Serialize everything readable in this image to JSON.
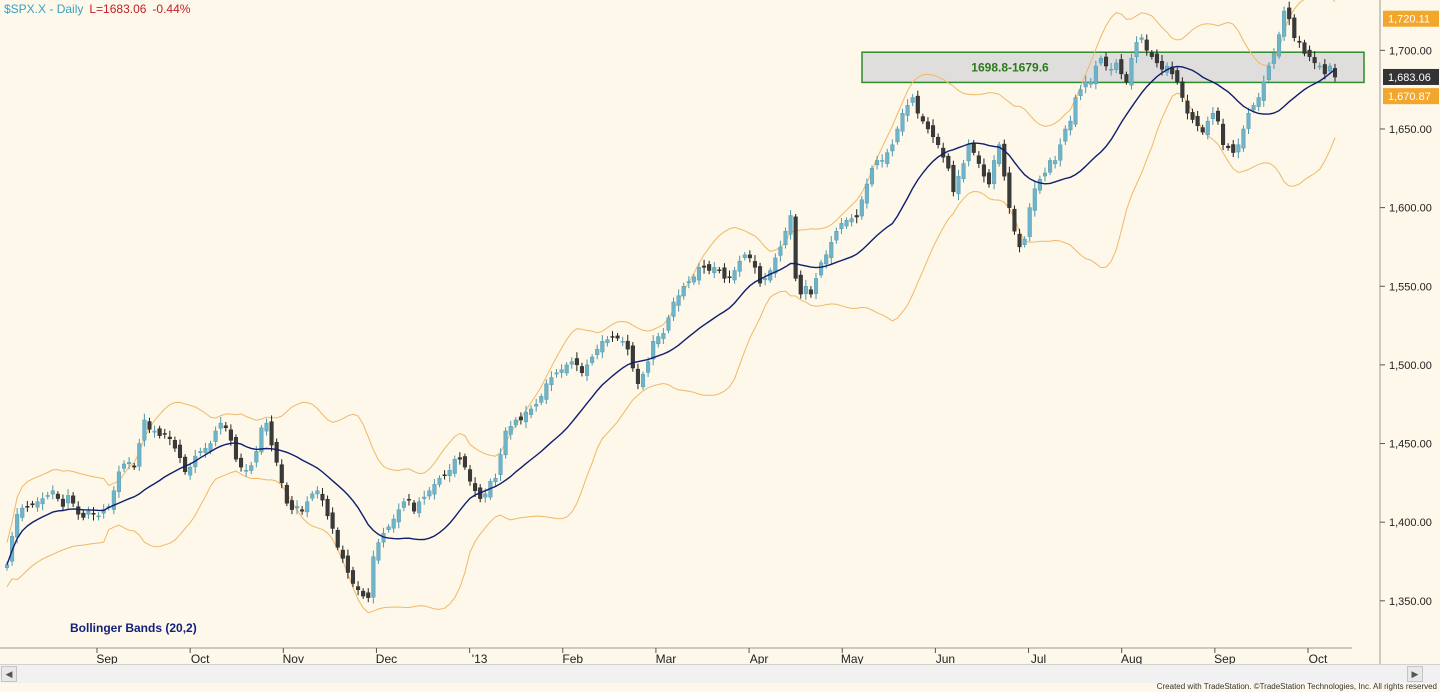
{
  "header": {
    "symbol": "$SPX.X - Daily",
    "last": "L=1683.06",
    "change": "-0.44%"
  },
  "indicator_label": "Bollinger Bands (20,2)",
  "footer": "Created with TradeStation. ©TradeStation Technologies, Inc. All rights reserved",
  "colors": {
    "background": "#fdf8e9",
    "up": "#6fb3c8",
    "down": "#3a3a3a",
    "ma": "#0f1e6e",
    "band": "#f0b868",
    "zone_border": "#2e8b2e",
    "zone_fill": "#d9d9d9",
    "zone_text": "#2a7a1a",
    "price_tag": "#f2a62b",
    "last_tag": "#333333"
  },
  "chart_data": {
    "type": "candlestick",
    "title": "$SPX.X - Daily",
    "y_ticks": [
      1350,
      1400,
      1450,
      1500,
      1550,
      1600,
      1650,
      1700
    ],
    "y_tick_labels": [
      "1,350.00",
      "1,400.00",
      "1,450.00",
      "1,500.00",
      "1,550.00",
      "1,600.00",
      "1,650.00",
      "1,700.00"
    ],
    "ylim": [
      1320,
      1732
    ],
    "x_labels": [
      "Sep",
      "Oct",
      "Nov",
      "Dec",
      "'13",
      "Feb",
      "Mar",
      "Apr",
      "May",
      "Jun",
      "Jul",
      "Aug",
      "Sep",
      "Oct"
    ],
    "zone": {
      "label": "1698.8-1679.6",
      "high": 1698.8,
      "low": 1679.6
    },
    "price_tags": [
      {
        "label": "1,720.11",
        "value": 1720.11,
        "kind": "band"
      },
      {
        "label": "1,683.06",
        "value": 1683.06,
        "kind": "last"
      },
      {
        "label": "1,670.87",
        "value": 1670.87,
        "kind": "band"
      }
    ],
    "indicator": "Bollinger Bands (20,2)",
    "price_path": [
      1373,
      1391,
      1405,
      1409,
      1410,
      1411,
      1413,
      1415,
      1417,
      1420,
      1415,
      1410,
      1417,
      1412,
      1405,
      1403,
      1407,
      1405,
      1404,
      1408,
      1410,
      1420,
      1432,
      1437,
      1438,
      1435,
      1450,
      1465,
      1459,
      1458,
      1455,
      1456,
      1453,
      1447,
      1441,
      1432,
      1435,
      1442,
      1445,
      1447,
      1450,
      1458,
      1463,
      1460,
      1452,
      1440,
      1435,
      1433,
      1436,
      1445,
      1460,
      1463,
      1449,
      1438,
      1425,
      1412,
      1408,
      1410,
      1407,
      1413,
      1418,
      1420,
      1414,
      1404,
      1396,
      1384,
      1377,
      1368,
      1361,
      1357,
      1353,
      1352,
      1378,
      1387,
      1393,
      1397,
      1402,
      1408,
      1413,
      1414,
      1407,
      1413,
      1416,
      1420,
      1424,
      1428,
      1430,
      1433,
      1440,
      1440,
      1435,
      1426,
      1420,
      1415,
      1418,
      1426,
      1428,
      1443,
      1458,
      1461,
      1465,
      1465,
      1470,
      1472,
      1475,
      1480,
      1488,
      1492,
      1495,
      1497,
      1500,
      1502,
      1500,
      1495,
      1500,
      1505,
      1510,
      1515,
      1516,
      1518,
      1517,
      1515,
      1510,
      1498,
      1488,
      1494,
      1502,
      1515,
      1518,
      1520,
      1530,
      1540,
      1544,
      1550,
      1553,
      1556,
      1562,
      1562,
      1560,
      1562,
      1560,
      1555,
      1556,
      1560,
      1566,
      1570,
      1568,
      1562,
      1552,
      1555,
      1560,
      1568,
      1575,
      1585,
      1595,
      1555,
      1545,
      1550,
      1545,
      1555,
      1565,
      1570,
      1578,
      1585,
      1590,
      1592,
      1593,
      1594,
      1605,
      1615,
      1625,
      1630,
      1630,
      1635,
      1640,
      1650,
      1660,
      1665,
      1670,
      1660,
      1655,
      1650,
      1645,
      1640,
      1632,
      1625,
      1610,
      1620,
      1628,
      1640,
      1635,
      1628,
      1620,
      1615,
      1630,
      1640,
      1620,
      1600,
      1585,
      1575,
      1580,
      1600,
      1612,
      1618,
      1622,
      1630,
      1630,
      1640,
      1650,
      1655,
      1670,
      1675,
      1680,
      1680,
      1690,
      1695,
      1690,
      1688,
      1692,
      1685,
      1680,
      1695,
      1705,
      1708,
      1700,
      1696,
      1692,
      1688,
      1690,
      1685,
      1680,
      1670,
      1660,
      1656,
      1652,
      1648,
      1655,
      1660,
      1655,
      1640,
      1638,
      1635,
      1640,
      1650,
      1660,
      1665,
      1670,
      1680,
      1690,
      1698,
      1710,
      1725,
      1720,
      1708,
      1705,
      1698,
      1696,
      1692,
      1690,
      1685,
      1690,
      1683
    ]
  }
}
